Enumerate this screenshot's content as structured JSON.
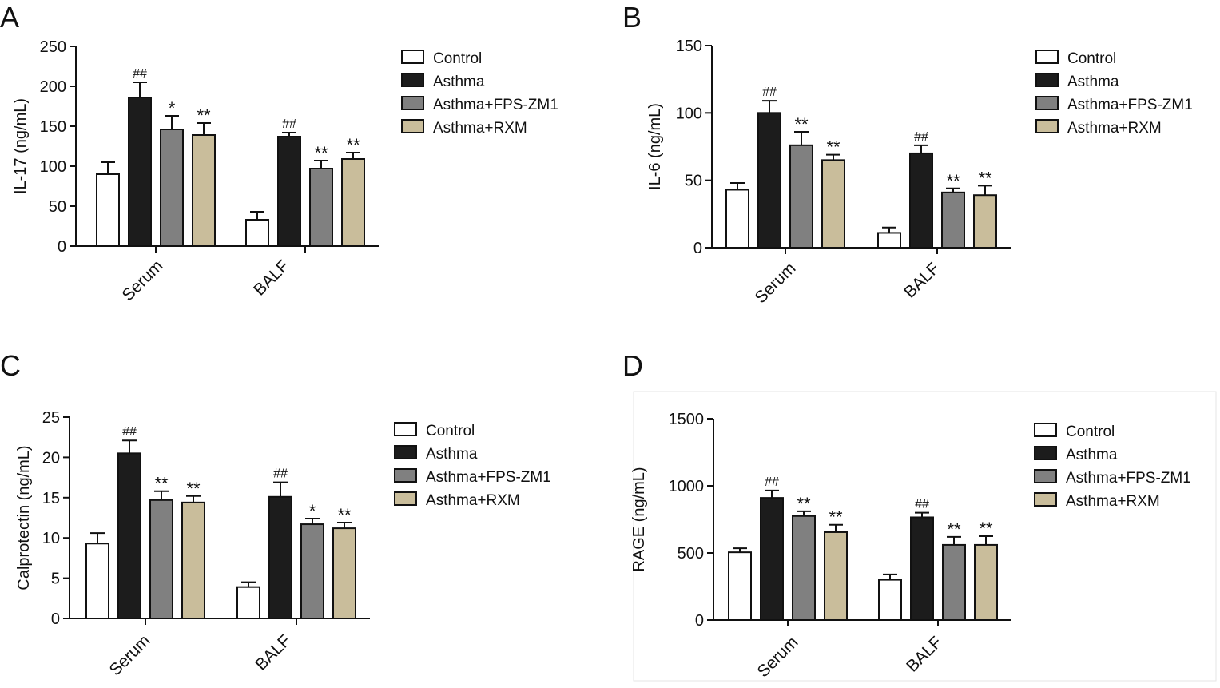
{
  "figure": {
    "categories": [
      "Serum",
      "BALF"
    ],
    "legend": [
      "Control",
      "Asthma",
      "Asthma+FPS-ZM1",
      "Asthma+RXM"
    ],
    "series_colors": [
      "#ffffff",
      "#1c1c1c",
      "#808080",
      "#c9bd9b"
    ]
  },
  "chart_data": [
    {
      "panel": "A",
      "type": "bar",
      "ylabel": "IL-17 (ng/mL)",
      "ylim": [
        0,
        250
      ],
      "yticks": [
        0,
        50,
        100,
        150,
        200,
        250
      ],
      "categories": [
        "Serum",
        "BALF"
      ],
      "series": [
        {
          "name": "Control",
          "values": [
            90,
            33
          ],
          "errors": [
            15,
            10
          ],
          "annotations": [
            "",
            ""
          ]
        },
        {
          "name": "Asthma",
          "values": [
            186,
            137
          ],
          "errors": [
            19,
            5
          ],
          "annotations": [
            "##",
            "##"
          ]
        },
        {
          "name": "Asthma+FPS-ZM1",
          "values": [
            146,
            97
          ],
          "errors": [
            17,
            10
          ],
          "annotations": [
            "*",
            "**"
          ]
        },
        {
          "name": "Asthma+RXM",
          "values": [
            139,
            109
          ],
          "errors": [
            15,
            8
          ],
          "annotations": [
            "**",
            "**"
          ]
        }
      ]
    },
    {
      "panel": "B",
      "type": "bar",
      "ylabel": "IL-6 (ng/mL)",
      "ylim": [
        0,
        150
      ],
      "yticks": [
        0,
        50,
        100,
        150
      ],
      "categories": [
        "Serum",
        "BALF"
      ],
      "series": [
        {
          "name": "Control",
          "values": [
            43,
            11
          ],
          "errors": [
            5,
            4
          ],
          "annotations": [
            "",
            ""
          ]
        },
        {
          "name": "Asthma",
          "values": [
            100,
            70
          ],
          "errors": [
            9,
            6
          ],
          "annotations": [
            "##",
            "##"
          ]
        },
        {
          "name": "Asthma+FPS-ZM1",
          "values": [
            76,
            41
          ],
          "errors": [
            10,
            3
          ],
          "annotations": [
            "**",
            "**"
          ]
        },
        {
          "name": "Asthma+RXM",
          "values": [
            65,
            39
          ],
          "errors": [
            4,
            7
          ],
          "annotations": [
            "**",
            "**"
          ]
        }
      ]
    },
    {
      "panel": "C",
      "type": "bar",
      "ylabel": "Calprotectin (ng/mL)",
      "ylim": [
        0,
        25
      ],
      "yticks": [
        0,
        5,
        10,
        15,
        20,
        25
      ],
      "categories": [
        "Serum",
        "BALF"
      ],
      "series": [
        {
          "name": "Control",
          "values": [
            9.3,
            3.9
          ],
          "errors": [
            1.3,
            0.6
          ],
          "annotations": [
            "",
            ""
          ]
        },
        {
          "name": "Asthma",
          "values": [
            20.5,
            15.1
          ],
          "errors": [
            1.6,
            1.8
          ],
          "annotations": [
            "##",
            "##"
          ]
        },
        {
          "name": "Asthma+FPS-ZM1",
          "values": [
            14.7,
            11.7
          ],
          "errors": [
            1.1,
            0.7
          ],
          "annotations": [
            "**",
            "*"
          ]
        },
        {
          "name": "Asthma+RXM",
          "values": [
            14.4,
            11.2
          ],
          "errors": [
            0.8,
            0.7
          ],
          "annotations": [
            "**",
            "**"
          ]
        }
      ]
    },
    {
      "panel": "D",
      "type": "bar",
      "ylabel": "RAGE (ng/mL)",
      "ylim": [
        0,
        1500
      ],
      "yticks": [
        0,
        500,
        1000,
        1500
      ],
      "categories": [
        "Serum",
        "BALF"
      ],
      "series": [
        {
          "name": "Control",
          "values": [
            505,
            300
          ],
          "errors": [
            30,
            40
          ],
          "annotations": [
            "",
            ""
          ]
        },
        {
          "name": "Asthma",
          "values": [
            910,
            765
          ],
          "errors": [
            55,
            35
          ],
          "annotations": [
            "##",
            "##"
          ]
        },
        {
          "name": "Asthma+FPS-ZM1",
          "values": [
            775,
            560
          ],
          "errors": [
            35,
            60
          ],
          "annotations": [
            "**",
            "**"
          ]
        },
        {
          "name": "Asthma+RXM",
          "values": [
            655,
            560
          ],
          "errors": [
            55,
            65
          ],
          "annotations": [
            "**",
            "**"
          ]
        }
      ]
    }
  ]
}
